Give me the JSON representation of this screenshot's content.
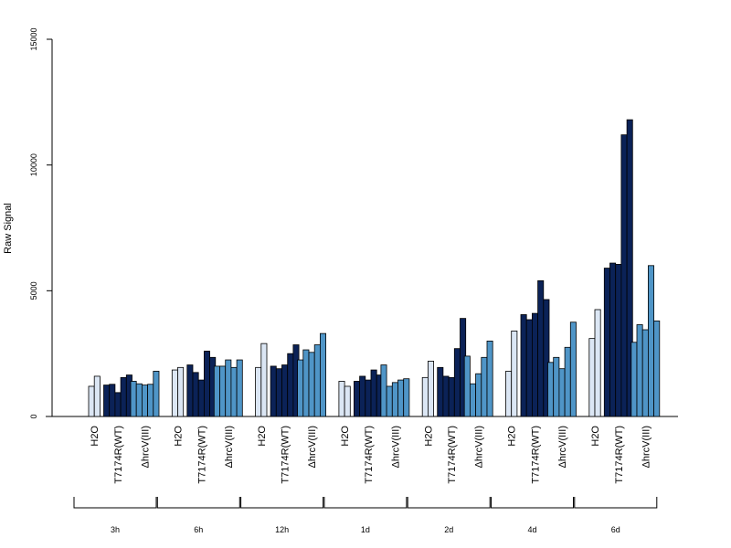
{
  "chart_data": {
    "type": "bar",
    "ylabel": "Raw Signal",
    "yticks": [
      0,
      5000,
      10000,
      15000
    ],
    "ylim": [
      0,
      15000
    ],
    "group_labels": [
      "H2O",
      "T7174R(WT)",
      "ΔhrcV(III)"
    ],
    "colors": {
      "H2O": "#dbe6f4",
      "T7174R(WT)": "#0b2257",
      "ΔhrcV(III)": "#4f95c7"
    },
    "times": [
      {
        "label": "3h",
        "groups": [
          [
            1200,
            1600
          ],
          [
            1250,
            1280,
            950,
            1550,
            1650
          ],
          [
            1400,
            1300,
            1250,
            1280,
            1800
          ]
        ]
      },
      {
        "label": "6h",
        "groups": [
          [
            1850,
            1950
          ],
          [
            2050,
            1750,
            1450,
            2600,
            2350
          ],
          [
            2000,
            2000,
            2250,
            1950,
            2250
          ]
        ]
      },
      {
        "label": "12h",
        "groups": [
          [
            1950,
            2900
          ],
          [
            2000,
            1900,
            2050,
            2500,
            2850
          ],
          [
            2250,
            2650,
            2550,
            2850,
            3300
          ]
        ]
      },
      {
        "label": "1d",
        "groups": [
          [
            1400,
            1200
          ],
          [
            1400,
            1600,
            1450,
            1850,
            1650
          ],
          [
            2050,
            1200,
            1350,
            1450,
            1500
          ]
        ]
      },
      {
        "label": "2d",
        "groups": [
          [
            1550,
            2200
          ],
          [
            1950,
            1600,
            1550,
            2700,
            3900
          ],
          [
            2400,
            1300,
            1700,
            2350,
            3000
          ]
        ]
      },
      {
        "label": "4d",
        "groups": [
          [
            1800,
            3400
          ],
          [
            4050,
            3850,
            4100,
            5400,
            4650
          ],
          [
            2150,
            2350,
            1900,
            2750,
            3750
          ]
        ]
      },
      {
        "label": "6d",
        "groups": [
          [
            3100,
            4250
          ],
          [
            5900,
            6100,
            6050,
            11200,
            11800
          ],
          [
            2950,
            3650,
            3450,
            6000,
            3800
          ]
        ]
      }
    ]
  }
}
